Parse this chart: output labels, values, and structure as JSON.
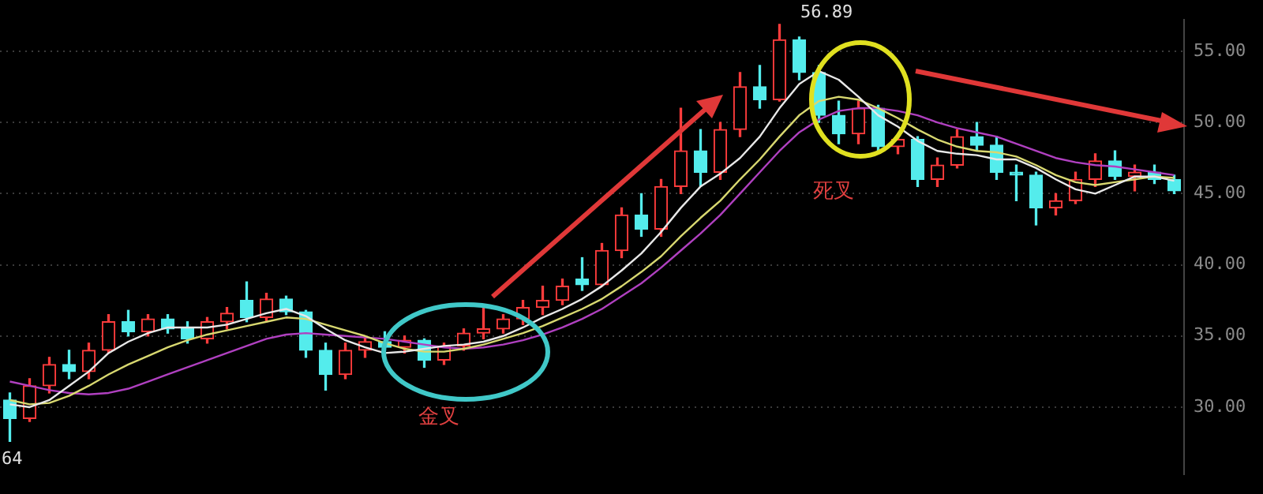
{
  "chart_data": {
    "type": "candlestick",
    "categories": [
      null,
      null,
      null,
      null,
      null,
      null,
      null,
      null,
      null,
      null,
      null,
      null,
      null,
      null,
      null,
      null,
      null,
      null,
      null,
      null,
      null,
      null,
      null,
      null,
      null,
      null,
      null,
      null,
      null,
      null,
      null,
      null,
      null,
      null,
      null,
      null,
      null,
      null,
      null,
      null,
      null,
      null,
      null,
      null,
      null,
      null,
      null,
      null,
      null,
      null,
      null,
      null,
      null,
      null,
      null,
      null,
      null,
      null,
      null,
      null
    ],
    "ohlc": [
      [
        30.5,
        31,
        27.6,
        29.2
      ],
      [
        29.2,
        32,
        29,
        31.5
      ],
      [
        31.5,
        33.5,
        31,
        33
      ],
      [
        33,
        34,
        32,
        32.5
      ],
      [
        32.5,
        34.5,
        32,
        34
      ],
      [
        34,
        36.5,
        33.8,
        36
      ],
      [
        36,
        36.8,
        35,
        35.3
      ],
      [
        35.3,
        36.5,
        35,
        36.2
      ],
      [
        36.2,
        36.5,
        35.2,
        35.5
      ],
      [
        35.5,
        36,
        34.5,
        34.8
      ],
      [
        34.8,
        36.3,
        34.5,
        36
      ],
      [
        36,
        37,
        35.5,
        36.6
      ],
      [
        37.5,
        38.8,
        36,
        36.3
      ],
      [
        36.3,
        38,
        36,
        37.6
      ],
      [
        37.6,
        37.8,
        36.5,
        36.7
      ],
      [
        36.7,
        36.8,
        33.5,
        34
      ],
      [
        34,
        34.5,
        31.2,
        32.3
      ],
      [
        32.3,
        34.5,
        32,
        34
      ],
      [
        34,
        35,
        33.5,
        34.6
      ],
      [
        34.6,
        35.3,
        34,
        34.2
      ],
      [
        34.2,
        35,
        33.8,
        34.7
      ],
      [
        34.7,
        34.8,
        32.8,
        33.3
      ],
      [
        33.3,
        34.5,
        33,
        34.3
      ],
      [
        34.3,
        35.5,
        34,
        35.2
      ],
      [
        35.2,
        37,
        34.8,
        35.5
      ],
      [
        35.5,
        36.5,
        35.2,
        36.2
      ],
      [
        36.2,
        37.5,
        35.8,
        37
      ],
      [
        37,
        38.5,
        36.5,
        37.5
      ],
      [
        37.5,
        39,
        37.2,
        38.5
      ],
      [
        39,
        40.5,
        38.2,
        38.6
      ],
      [
        38.6,
        41.5,
        38.5,
        41
      ],
      [
        41,
        44,
        40.5,
        43.5
      ],
      [
        43.5,
        45,
        42,
        42.5
      ],
      [
        42.5,
        46,
        42,
        45.5
      ],
      [
        45.5,
        51,
        45,
        48
      ],
      [
        48,
        49.5,
        45.5,
        46.5
      ],
      [
        46.5,
        50,
        46,
        49.5
      ],
      [
        49.5,
        53.5,
        49,
        52.5
      ],
      [
        52.5,
        54,
        51,
        51.6
      ],
      [
        51.6,
        56.89,
        51.5,
        55.8
      ],
      [
        55.8,
        56,
        53,
        53.5
      ],
      [
        53.5,
        54,
        50,
        50.5
      ],
      [
        50.5,
        51.5,
        48.5,
        49.2
      ],
      [
        49.2,
        51.5,
        48.5,
        51
      ],
      [
        51,
        51.2,
        48,
        48.3
      ],
      [
        48.3,
        49,
        47.8,
        48.8
      ],
      [
        48.8,
        49,
        45.5,
        46
      ],
      [
        46,
        47.5,
        45.5,
        47
      ],
      [
        47,
        49.5,
        46.8,
        49
      ],
      [
        49,
        50,
        48,
        48.4
      ],
      [
        48.4,
        49,
        46,
        46.5
      ],
      [
        46.5,
        47,
        44.5,
        46.3
      ],
      [
        46.3,
        46.5,
        42.8,
        44
      ],
      [
        44,
        45,
        43.5,
        44.5
      ],
      [
        44.5,
        46.5,
        44.3,
        46
      ],
      [
        46,
        47.8,
        45.5,
        47.3
      ],
      [
        47.3,
        48,
        46,
        46.2
      ],
      [
        46.2,
        47,
        45.2,
        46.5
      ],
      [
        46.5,
        47,
        45.7,
        46
      ],
      [
        46,
        46.3,
        45,
        45.2
      ]
    ],
    "series": [
      {
        "type": "line",
        "color": "#e8e8e8",
        "values": [
          30.2,
          30,
          30.5,
          31.5,
          32.5,
          33.8,
          34.6,
          35.2,
          35.6,
          35.6,
          35.6,
          35.8,
          36.2,
          36.6,
          36.9,
          36.4,
          35.5,
          34.7,
          34.2,
          33.8,
          33.9,
          34.1,
          34.3,
          34.4,
          34.6,
          35,
          35.6,
          36.3,
          36.9,
          37.6,
          38.5,
          39.6,
          40.8,
          42.3,
          44,
          45.5,
          46.4,
          47.5,
          49,
          51,
          52.7,
          53.6,
          53,
          51.8,
          50.5,
          49.7,
          48.7,
          48,
          47.8,
          47.7,
          47.4,
          47.4,
          46.8,
          46,
          45.3,
          45,
          45.6,
          46.2,
          46.2,
          45.9
        ]
      },
      {
        "type": "line",
        "color": "#d8d870",
        "values": [
          30.5,
          30.2,
          30.3,
          30.8,
          31.5,
          32.3,
          33,
          33.6,
          34.2,
          34.7,
          35.1,
          35.4,
          35.7,
          36,
          36.3,
          36.2,
          35.8,
          35.4,
          35,
          34.5,
          34.1,
          33.9,
          33.9,
          34.1,
          34.4,
          34.8,
          35.2,
          35.7,
          36.3,
          36.9,
          37.6,
          38.5,
          39.5,
          40.6,
          42,
          43.3,
          44.5,
          46,
          47.4,
          49,
          50.5,
          51.5,
          51.8,
          51.6,
          51,
          50.3,
          49.5,
          48.8,
          48.3,
          48,
          47.9,
          47.6,
          47,
          46.3,
          45.8,
          45.6,
          45.8,
          46,
          46.2,
          46.1
        ]
      },
      {
        "type": "line",
        "color": "#b040c0",
        "values": [
          31.8,
          31.5,
          31.2,
          31,
          30.9,
          31,
          31.3,
          31.8,
          32.3,
          32.8,
          33.3,
          33.8,
          34.3,
          34.8,
          35.1,
          35.2,
          35.1,
          35,
          34.9,
          34.8,
          34.6,
          34.4,
          34.2,
          34.1,
          34.2,
          34.4,
          34.7,
          35.1,
          35.6,
          36.2,
          36.9,
          37.8,
          38.7,
          39.8,
          41,
          42.2,
          43.5,
          45,
          46.5,
          48,
          49.3,
          50.2,
          50.8,
          51,
          51,
          50.8,
          50.5,
          50,
          49.6,
          49.3,
          49,
          48.5,
          48,
          47.5,
          47.2,
          47,
          46.9,
          46.7,
          46.5,
          46.3
        ]
      }
    ],
    "ylim": [
      25.3,
      57.2
    ],
    "yticks": [
      {
        "value": 30,
        "label": "30.00"
      },
      {
        "value": 35,
        "label": "35.00"
      },
      {
        "value": 40,
        "label": "40.00"
      },
      {
        "value": 45,
        "label": "45.00"
      },
      {
        "value": 50,
        "label": "50.00"
      },
      {
        "value": 55,
        "label": "55.00"
      }
    ],
    "grid": "y",
    "legend": false,
    "tick_labels": "y",
    "annotations": [
      "56.89",
      "64",
      "金叉",
      "死叉"
    ]
  }
}
